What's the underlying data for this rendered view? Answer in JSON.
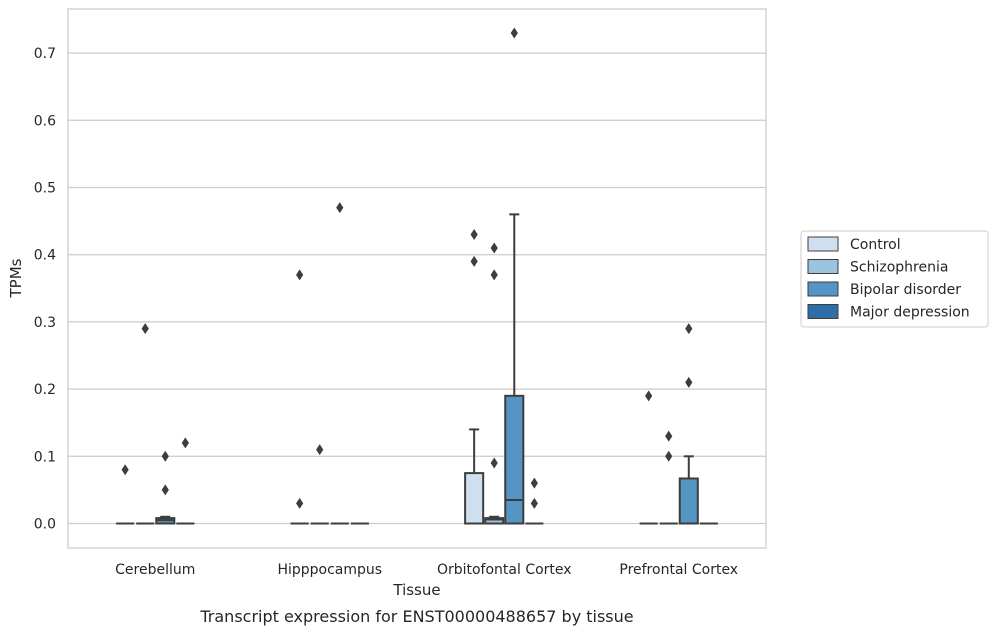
{
  "chart_data": {
    "type": "box",
    "title": "",
    "caption": "Transcript expression for ENST00000488657 by tissue",
    "xlabel": "Tissue",
    "ylabel": "TPMs",
    "ylim": [
      -0.035,
      0.766
    ],
    "yticks": [
      0.0,
      0.1,
      0.2,
      0.3,
      0.4,
      0.5,
      0.6,
      0.7
    ],
    "ytick_labels": [
      "0.0",
      "0.1",
      "0.2",
      "0.3",
      "0.4",
      "0.5",
      "0.6",
      "0.7"
    ],
    "grid": "horizontal",
    "legend_position": "right",
    "categories": [
      "Cerebellum",
      "Hipppocampus",
      "Orbitofontal Cortex",
      "Prefrontal Cortex"
    ],
    "series": [
      {
        "name": "Control",
        "color": "#cfdff0",
        "boxes": [
          {
            "q1": 0,
            "median": 0,
            "q3": 0,
            "whisker_low": 0,
            "whisker_high": 0,
            "outliers": [
              0.08
            ]
          },
          {
            "q1": 0,
            "median": 0,
            "q3": 0,
            "whisker_low": 0,
            "whisker_high": 0,
            "outliers": [
              0.37,
              0.03
            ]
          },
          {
            "q1": 0,
            "median": 0,
            "q3": 0.075,
            "whisker_low": 0,
            "whisker_high": 0.14,
            "outliers": [
              0.43,
              0.39
            ]
          },
          {
            "q1": 0,
            "median": 0,
            "q3": 0,
            "whisker_low": 0,
            "whisker_high": 0,
            "outliers": [
              0.19
            ]
          }
        ]
      },
      {
        "name": "Schizophrenia",
        "color": "#9ac3de",
        "boxes": [
          {
            "q1": 0,
            "median": 0,
            "q3": 0,
            "whisker_low": 0,
            "whisker_high": 0,
            "outliers": [
              0.29
            ]
          },
          {
            "q1": 0,
            "median": 0,
            "q3": 0,
            "whisker_low": 0,
            "whisker_high": 0,
            "outliers": [
              0.11
            ]
          },
          {
            "q1": 0,
            "median": 0.006,
            "q3": 0.008,
            "whisker_low": 0,
            "whisker_high": 0.01,
            "outliers": [
              0.41,
              0.37,
              0.09
            ]
          },
          {
            "q1": 0,
            "median": 0,
            "q3": 0,
            "whisker_low": 0,
            "whisker_high": 0,
            "outliers": [
              0.13,
              0.1
            ]
          }
        ]
      },
      {
        "name": "Bipolar disorder",
        "color": "#5495c3",
        "boxes": [
          {
            "q1": 0,
            "median": 0.005,
            "q3": 0.008,
            "whisker_low": 0,
            "whisker_high": 0.01,
            "outliers": [
              0.1,
              0.05
            ]
          },
          {
            "q1": 0,
            "median": 0,
            "q3": 0,
            "whisker_low": 0,
            "whisker_high": 0,
            "outliers": [
              0.47
            ]
          },
          {
            "q1": 0,
            "median": 0.035,
            "q3": 0.19,
            "whisker_low": 0,
            "whisker_high": 0.46,
            "outliers": [
              0.73
            ]
          },
          {
            "q1": 0,
            "median": 0,
            "q3": 0.067,
            "whisker_low": 0,
            "whisker_high": 0.1,
            "outliers": [
              0.29,
              0.21
            ]
          }
        ]
      },
      {
        "name": "Major depression",
        "color": "#2f6ea9",
        "boxes": [
          {
            "q1": 0,
            "median": 0,
            "q3": 0,
            "whisker_low": 0,
            "whisker_high": 0,
            "outliers": [
              0.12
            ]
          },
          {
            "q1": 0,
            "median": 0,
            "q3": 0,
            "whisker_low": 0,
            "whisker_high": 0,
            "outliers": []
          },
          {
            "q1": 0,
            "median": 0,
            "q3": 0,
            "whisker_low": 0,
            "whisker_high": 0,
            "outliers": [
              0.06,
              0.03
            ]
          },
          {
            "q1": 0,
            "median": 0,
            "q3": 0,
            "whisker_low": 0,
            "whisker_high": 0,
            "outliers": []
          }
        ]
      }
    ]
  }
}
